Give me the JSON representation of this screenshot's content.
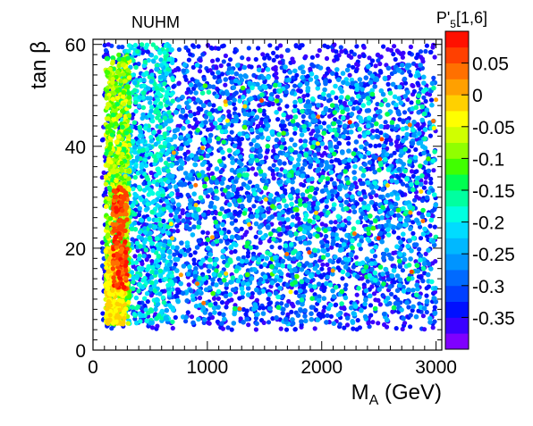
{
  "chart_data": {
    "type": "scatter",
    "title": "NUHM",
    "xlabel": "M",
    "xlabel_sub": "A",
    "xlabel_unit": " (GeV)",
    "ylabel": "tan β",
    "xlim": [
      0,
      3050
    ],
    "ylim": [
      0,
      61
    ],
    "x_ticks": [
      0,
      1000,
      2000,
      3000
    ],
    "y_ticks": [
      0,
      20,
      40,
      60
    ],
    "colorbar": {
      "label_main": "P'",
      "label_sub": "5",
      "label_rest": "[1,6]",
      "range": [
        -0.4,
        0.1
      ],
      "ticks": [
        0.05,
        0,
        -0.05,
        -0.1,
        -0.15,
        -0.2,
        -0.25,
        -0.3,
        -0.35
      ],
      "tick_labels": [
        "0.05",
        "0",
        "-0.05",
        "-0.1",
        "-0.15",
        "-0.2",
        "-0.25",
        "-0.3",
        "-0.35"
      ]
    },
    "colors": {
      "palette": [
        "#7f00ff",
        "#3a00ff",
        "#0010ff",
        "#0040ff",
        "#006aff",
        "#0094ff",
        "#00b8ff",
        "#00dcff",
        "#00ffe0",
        "#00ffa0",
        "#00ff50",
        "#40ff00",
        "#90ff00",
        "#d0ff00",
        "#ffff00",
        "#ffd000",
        "#ffa000",
        "#ff7000",
        "#ff4000",
        "#ff1000"
      ]
    },
    "points_note": "Point density recreated procedurally; regions approximate the plotted distribution.",
    "regions": [
      {
        "x": [
          50,
          3000
        ],
        "y": [
          4,
          60
        ],
        "value_range": [
          -0.37,
          -0.3
        ]
      },
      {
        "x": [
          100,
          300
        ],
        "y": [
          5,
          58
        ],
        "value_range": [
          -0.15,
          -0.02
        ]
      },
      {
        "x": [
          150,
          300
        ],
        "y": [
          12,
          32
        ],
        "value_range": [
          0.0,
          0.08
        ]
      },
      {
        "x": [
          250,
          600
        ],
        "y": [
          5,
          60
        ],
        "value_range": [
          -0.22,
          -0.12
        ]
      },
      {
        "x": [
          500,
          3000
        ],
        "y": [
          5,
          55
        ],
        "value_range": [
          -0.27,
          -0.15
        ]
      }
    ]
  }
}
